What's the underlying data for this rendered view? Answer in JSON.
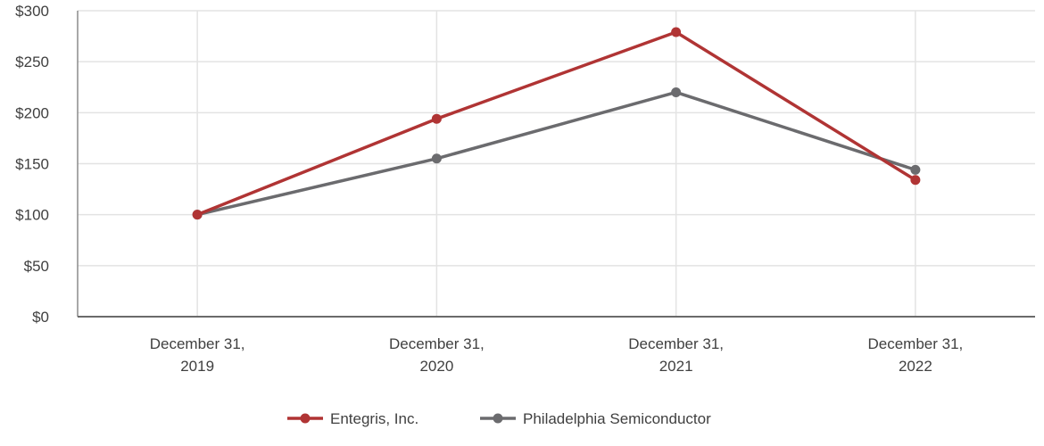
{
  "chart_data": {
    "type": "line",
    "title": "",
    "xlabel": "",
    "ylabel": "",
    "categories": [
      [
        "December 31,",
        "2019"
      ],
      [
        "December 31,",
        "2020"
      ],
      [
        "December 31,",
        "2021"
      ],
      [
        "December 31,",
        "2022"
      ]
    ],
    "y_ticks": [
      "$0",
      "$50",
      "$100",
      "$150",
      "$200",
      "$250",
      "$300"
    ],
    "ylim": [
      0,
      300
    ],
    "grid": true,
    "legend_position": "bottom",
    "series": [
      {
        "name": "Entegris, Inc.",
        "color": "#b03434",
        "values": [
          100,
          194,
          279,
          134
        ]
      },
      {
        "name": "Philadelphia Semiconductor",
        "color": "#6b6b6e",
        "values": [
          100,
          155,
          220,
          144
        ]
      }
    ]
  }
}
